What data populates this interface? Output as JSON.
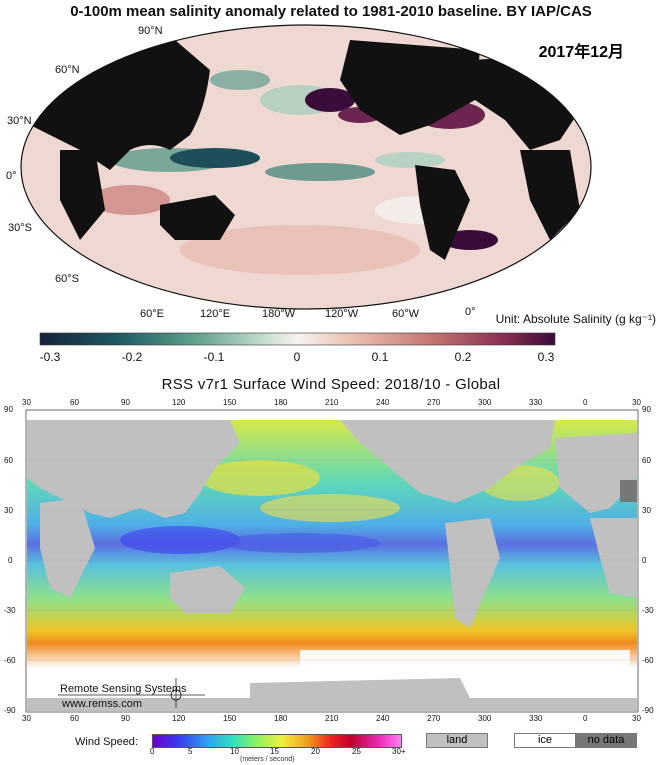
{
  "salinity_map": {
    "title": "0-100m mean salinity anomaly related to 1981-2010 baseline. BY IAP/CAS",
    "date": "2017年12月",
    "lat_labels": [
      "90°N",
      "60°N",
      "30°N",
      "0°",
      "30°S",
      "60°S"
    ],
    "lon_labels": [
      "60°E",
      "120°E",
      "180°W",
      "120°W",
      "60°W",
      "0°"
    ],
    "unit": "Unit: Absolute Salinity (g kg⁻¹)",
    "colorbar_ticks": [
      "-0.3",
      "-0.2",
      "-0.1",
      "0",
      "0.1",
      "0.2",
      "0.3"
    ],
    "colors": {
      "neg": "#16213c",
      "mid": "#f7f0ee",
      "pos": "#3b0b3a",
      "land": "#111111"
    }
  },
  "wind_map": {
    "title": "RSS  v7r1  Surface Wind Speed: 2018/10 - Global",
    "lon_ticks": [
      "30",
      "60",
      "90",
      "120",
      "150",
      "180",
      "210",
      "240",
      "270",
      "300",
      "330",
      "0",
      "30"
    ],
    "lat_ticks": [
      "90",
      "60",
      "30",
      "0",
      "-30",
      "-60",
      "-90"
    ],
    "logo_text": "Remote Sensing Systems",
    "logo_url": "www.remss.com",
    "legend": {
      "label": "Wind Speed:",
      "ticks": [
        "0",
        "5",
        "10",
        "15",
        "20",
        "25",
        "30+"
      ],
      "units": "(meters / second)",
      "land": "land",
      "ice": "ice",
      "no_data": "no data"
    },
    "colors": {
      "land": "#c0c0c0",
      "ice": "#ffffff",
      "no_data": "#777777"
    }
  }
}
